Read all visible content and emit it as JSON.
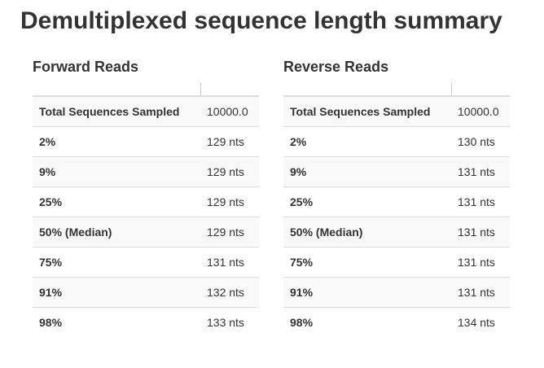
{
  "page": {
    "title": "Demultiplexed sequence length summary"
  },
  "colors": {
    "text": "#333333",
    "border": "#dddddd",
    "divider": "#cccccc",
    "stripe": "#f9f9f9",
    "background": "#ffffff"
  },
  "tables": [
    {
      "heading": "Forward Reads",
      "header": [
        "",
        ""
      ],
      "rows": [
        {
          "label": "Total Sequences Sampled",
          "value": "10000.0"
        },
        {
          "label": "2%",
          "value": "129 nts"
        },
        {
          "label": "9%",
          "value": "129 nts"
        },
        {
          "label": "25%",
          "value": "129 nts"
        },
        {
          "label": "50% (Median)",
          "value": "129 nts"
        },
        {
          "label": "75%",
          "value": "131 nts"
        },
        {
          "label": "91%",
          "value": "132 nts"
        },
        {
          "label": "98%",
          "value": "133 nts"
        }
      ]
    },
    {
      "heading": "Reverse Reads",
      "header": [
        "",
        ""
      ],
      "rows": [
        {
          "label": "Total Sequences Sampled",
          "value": "10000.0"
        },
        {
          "label": "2%",
          "value": "130 nts"
        },
        {
          "label": "9%",
          "value": "131 nts"
        },
        {
          "label": "25%",
          "value": "131 nts"
        },
        {
          "label": "50% (Median)",
          "value": "131 nts"
        },
        {
          "label": "75%",
          "value": "131 nts"
        },
        {
          "label": "91%",
          "value": "131 nts"
        },
        {
          "label": "98%",
          "value": "134 nts"
        }
      ]
    }
  ]
}
